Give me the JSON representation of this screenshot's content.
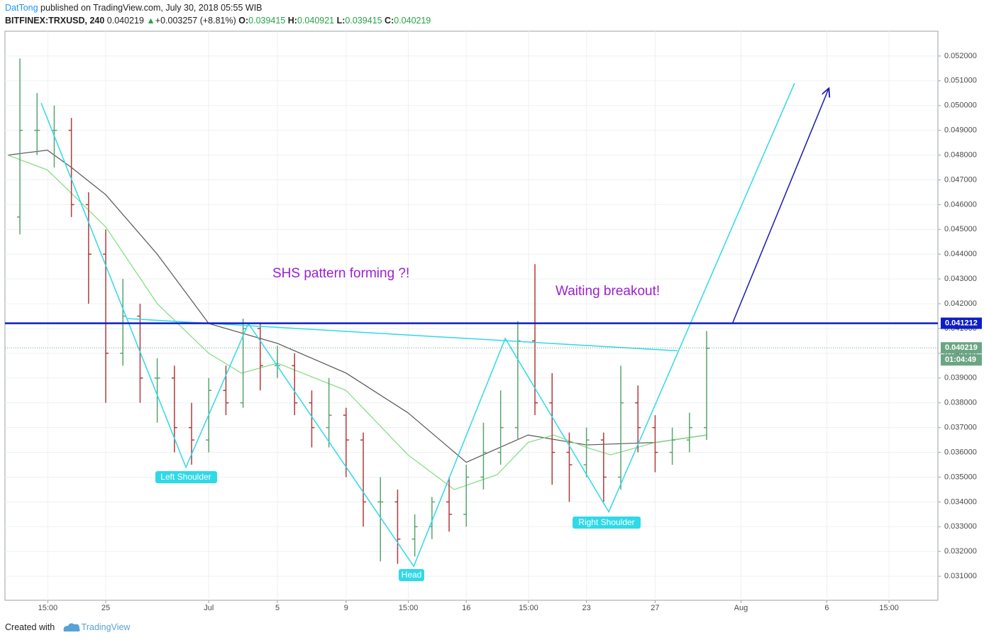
{
  "header": {
    "author": "DatTong",
    "published": "published on TradingView.com, July 30, 2018 05:55 WIB",
    "symbol": "BITFINEX:TRXUSD, 240",
    "last": "0.040219",
    "arrow": "▲",
    "change": "+0.003257 (+8.81%)",
    "o_label": "O:",
    "o": "0.039415",
    "h_label": "H:",
    "h": "0.040921",
    "l_label": "L:",
    "l": "0.039415",
    "c_label": "C:",
    "c": "0.040219"
  },
  "footer": {
    "created": "Created with",
    "brand": "TradingView"
  },
  "chart_data": {
    "type": "ohlc",
    "xlim": [
      19.13,
      73.47
    ],
    "xticks": [
      {
        "value": 21.625,
        "label": "15:00"
      },
      {
        "value": 25,
        "label": "25"
      },
      {
        "value": 31,
        "label": "Jul"
      },
      {
        "value": 35,
        "label": "5"
      },
      {
        "value": 39,
        "label": "9"
      },
      {
        "value": 42.625,
        "label": "15:00"
      },
      {
        "value": 46,
        "label": "16"
      },
      {
        "value": 49.625,
        "label": "15:00"
      },
      {
        "value": 53,
        "label": "23"
      },
      {
        "value": 57,
        "label": "27"
      },
      {
        "value": 62,
        "label": "Aug"
      },
      {
        "value": 67,
        "label": "6"
      },
      {
        "value": 70.625,
        "label": "15:00"
      }
    ],
    "ylim": [
      0.03003,
      0.053
    ],
    "yticks": [
      {
        "value": 0.031,
        "label": "0.031000"
      },
      {
        "value": 0.032,
        "label": "0.032000"
      },
      {
        "value": 0.033,
        "label": "0.033000"
      },
      {
        "value": 0.034,
        "label": "0.034000"
      },
      {
        "value": 0.035,
        "label": "0.035000"
      },
      {
        "value": 0.036,
        "label": "0.036000"
      },
      {
        "value": 0.037,
        "label": "0.037000"
      },
      {
        "value": 0.038,
        "label": "0.038000"
      },
      {
        "value": 0.039,
        "label": "0.039000"
      },
      {
        "value": 0.04,
        "label": "0.040000"
      },
      {
        "value": 0.041,
        "label": "0.041000"
      },
      {
        "value": 0.042,
        "label": "0.042000"
      },
      {
        "value": 0.043,
        "label": "0.043000"
      },
      {
        "value": 0.044,
        "label": "0.044000"
      },
      {
        "value": 0.045,
        "label": "0.045000"
      },
      {
        "value": 0.046,
        "label": "0.046000"
      },
      {
        "value": 0.047,
        "label": "0.047000"
      },
      {
        "value": 0.048,
        "label": "0.048000"
      },
      {
        "value": 0.049,
        "label": "0.049000"
      },
      {
        "value": 0.05,
        "label": "0.050000"
      },
      {
        "value": 0.051,
        "label": "0.051000"
      },
      {
        "value": 0.052,
        "label": "0.052000"
      }
    ],
    "grid": true,
    "up_color": "#5aa36e",
    "down_color": "#b33a3a",
    "x": [
      20,
      21,
      22,
      23,
      24,
      25,
      26,
      27,
      28,
      29,
      30,
      31,
      32,
      33,
      34,
      35,
      36,
      37,
      38,
      39,
      40,
      41,
      42,
      43,
      44,
      45,
      46,
      47,
      48,
      49,
      50,
      51,
      52,
      53,
      54,
      55,
      56,
      57,
      58,
      59,
      60
    ],
    "open": [
      0.0455,
      0.049,
      0.049,
      0.049,
      0.046,
      0.044,
      0.04,
      0.0415,
      0.039,
      0.039,
      0.037,
      0.0365,
      0.0385,
      0.038,
      0.041,
      0.0395,
      0.0395,
      0.038,
      0.037,
      0.0375,
      0.0365,
      0.034,
      0.034,
      0.0325,
      0.033,
      0.034,
      0.0335,
      0.035,
      0.036,
      0.037,
      0.0405,
      0.038,
      0.036,
      0.0355,
      0.0365,
      0.035,
      0.038,
      0.037,
      0.036,
      0.0365,
      0.037
    ],
    "high": [
      0.0519,
      0.0505,
      0.05,
      0.0495,
      0.0465,
      0.045,
      0.043,
      0.042,
      0.0398,
      0.0395,
      0.038,
      0.039,
      0.0395,
      0.0414,
      0.0412,
      0.0403,
      0.04,
      0.0385,
      0.039,
      0.0378,
      0.0368,
      0.035,
      0.0345,
      0.0335,
      0.0342,
      0.035,
      0.0355,
      0.0372,
      0.0385,
      0.0413,
      0.0436,
      0.0392,
      0.0368,
      0.037,
      0.0368,
      0.0395,
      0.0387,
      0.0375,
      0.037,
      0.0376,
      0.0409
    ],
    "low": [
      0.0448,
      0.048,
      0.0475,
      0.0455,
      0.042,
      0.038,
      0.0395,
      0.038,
      0.0372,
      0.036,
      0.0355,
      0.036,
      0.0375,
      0.0378,
      0.0385,
      0.039,
      0.0375,
      0.0362,
      0.0362,
      0.035,
      0.033,
      0.0316,
      0.0315,
      0.0318,
      0.0325,
      0.0328,
      0.033,
      0.0345,
      0.0355,
      0.0365,
      0.0375,
      0.0347,
      0.034,
      0.035,
      0.034,
      0.0345,
      0.036,
      0.0352,
      0.0355,
      0.036,
      0.0365
    ],
    "close": [
      0.049,
      0.049,
      0.049,
      0.046,
      0.044,
      0.04,
      0.0415,
      0.039,
      0.039,
      0.037,
      0.0365,
      0.0385,
      0.038,
      0.041,
      0.0395,
      0.0395,
      0.038,
      0.037,
      0.0375,
      0.0365,
      0.034,
      0.034,
      0.0325,
      0.033,
      0.034,
      0.0335,
      0.035,
      0.036,
      0.037,
      0.0405,
      0.038,
      0.036,
      0.0355,
      0.0365,
      0.035,
      0.038,
      0.037,
      0.036,
      0.0365,
      0.037,
      0.0402
    ],
    "lines": [
      {
        "color": "#555555",
        "x": [
          19.3,
          21.6,
          23,
          25,
          28,
          31,
          35,
          39,
          42.6,
          46,
          49.6,
          53,
          57,
          60
        ],
        "values": [
          0.048,
          0.0482,
          0.0475,
          0.0464,
          0.044,
          0.0412,
          0.0404,
          0.0392,
          0.0376,
          0.0356,
          0.0367,
          0.0363,
          0.0364,
          0.0367
        ]
      },
      {
        "color": "#7ddc7d",
        "x": [
          19.3,
          21.6,
          22.2,
          25,
          28,
          31,
          32.9,
          35,
          39,
          42.6,
          45.3,
          47.8,
          49.6,
          51.1,
          53,
          54.4,
          57,
          60
        ],
        "values": [
          0.048,
          0.0474,
          0.047,
          0.0451,
          0.042,
          0.04,
          0.0392,
          0.0396,
          0.0385,
          0.0359,
          0.0345,
          0.0351,
          0.0364,
          0.0367,
          0.0362,
          0.0359,
          0.0364,
          0.0367
        ]
      }
    ],
    "drawings": [
      {
        "color": "#2fd9e8",
        "arrow": false,
        "x": [
          21.24,
          29.67,
          33.31,
          42.94,
          48.27,
          54.3,
          65.12
        ],
        "values": [
          0.0501,
          0.0354,
          0.0412,
          0.0314,
          0.0406,
          0.0336,
          0.0509
        ]
      },
      {
        "color": "#2fd9e8",
        "arrow": false,
        "x": [
          26.27,
          58.29
        ],
        "values": [
          0.0414,
          0.0401
        ]
      },
      {
        "color": "#1a1ab0",
        "arrow": true,
        "x": [
          61.5,
          67.12
        ],
        "values": [
          0.0412,
          0.0507
        ]
      }
    ],
    "hline": {
      "value": 0.041212,
      "color": "#0d1ec8"
    },
    "price_line": {
      "value": 0.040219,
      "countdown": "01:04:49",
      "color": "#6ba583"
    },
    "annotations": [
      "SHS pattern forming ?!",
      "Waiting breakout!"
    ],
    "labels": [
      "Left Shoulder",
      "Head",
      "Right Shoulder"
    ]
  }
}
